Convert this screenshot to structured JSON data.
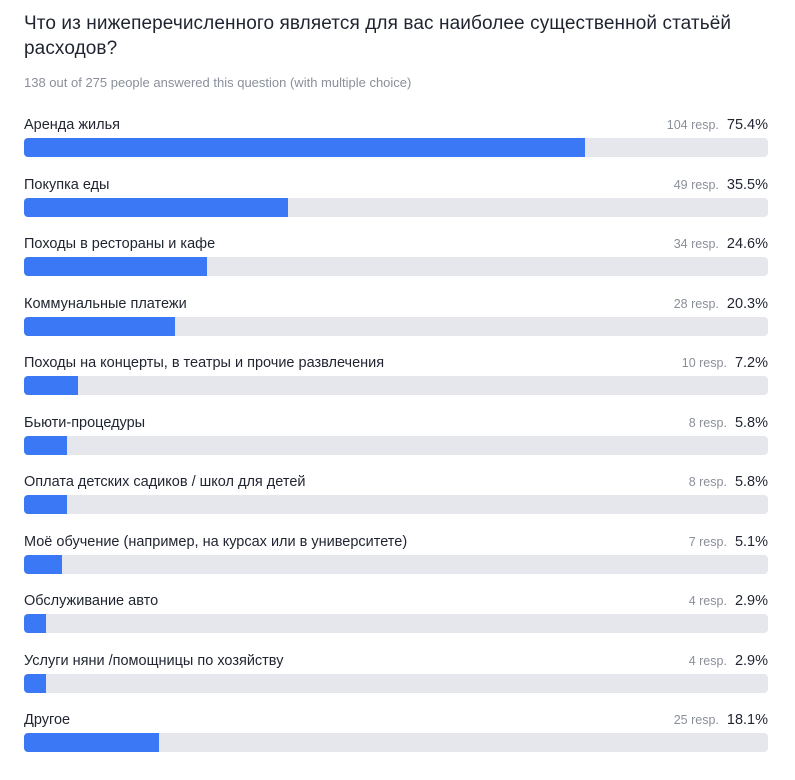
{
  "question": {
    "title": "Что из нижеперечисленного является для вас наиболее существенной статьёй расходов?",
    "subtitle": "138 out of 275 people answered this question (with multiple choice)"
  },
  "colors": {
    "bar_fill": "#3a78f5",
    "bar_track": "#e6e7ec"
  },
  "options": [
    {
      "label": "Аренда жилья",
      "responses": "104 resp.",
      "percent": "75.4%",
      "value": 75.4
    },
    {
      "label": "Покупка еды",
      "responses": "49 resp.",
      "percent": "35.5%",
      "value": 35.5
    },
    {
      "label": "Походы в рестораны и кафе",
      "responses": "34 resp.",
      "percent": "24.6%",
      "value": 24.6
    },
    {
      "label": "Коммунальные платежи",
      "responses": "28 resp.",
      "percent": "20.3%",
      "value": 20.3
    },
    {
      "label": "Походы на концерты, в театры и прочие развлечения",
      "responses": "10 resp.",
      "percent": "7.2%",
      "value": 7.2
    },
    {
      "label": "Бьюти-процедуры",
      "responses": "8 resp.",
      "percent": "5.8%",
      "value": 5.8
    },
    {
      "label": "Оплата детских садиков / школ для детей",
      "responses": "8 resp.",
      "percent": "5.8%",
      "value": 5.8
    },
    {
      "label": "Моё обучение (например, на курсах или в университете)",
      "responses": "7 resp.",
      "percent": "5.1%",
      "value": 5.1
    },
    {
      "label": "Обслуживание авто",
      "responses": "4 resp.",
      "percent": "2.9%",
      "value": 2.9
    },
    {
      "label": "Услуги няни /помощницы по хозяйству",
      "responses": "4 resp.",
      "percent": "2.9%",
      "value": 2.9
    },
    {
      "label": "Другое",
      "responses": "25 resp.",
      "percent": "18.1%",
      "value": 18.1
    }
  ]
}
